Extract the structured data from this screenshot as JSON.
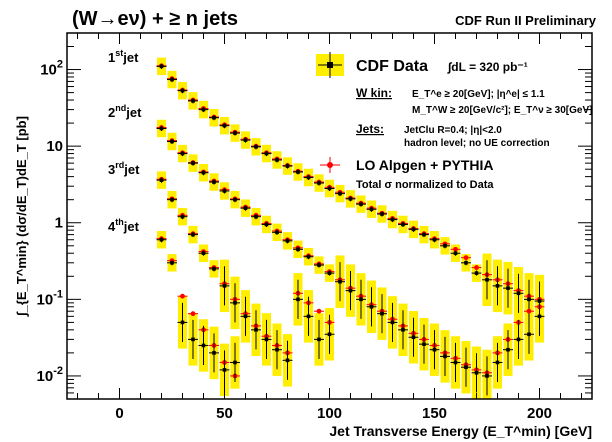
{
  "header": {
    "title": "(W→eν) + ≥ n jets",
    "subtitle": "CDF Run II Preliminary"
  },
  "chart_data": {
    "type": "scatter",
    "xlabel": "Jet Transverse Energy (E_T^min) [GeV]",
    "ylabel": "∫_{E_T^min} (dσ/dE_T)dE_T [pb]",
    "xlim": [
      -25,
      225
    ],
    "ylim": [
      0.005,
      300
    ],
    "yscale": "log",
    "grid": false,
    "x_ticks": [
      0,
      50,
      100,
      150,
      200
    ],
    "y_ticks": [
      0.01,
      0.1,
      1,
      10,
      100
    ],
    "y_tick_labels": [
      "10^-2",
      "10^-1",
      "1",
      "10",
      "10^2"
    ],
    "series": [
      {
        "name": "1st jet",
        "x": [
          20,
          25,
          30,
          35,
          40,
          45,
          50,
          55,
          60,
          65,
          70,
          75,
          80,
          85,
          90,
          95,
          100,
          105,
          110,
          115,
          120,
          125,
          130,
          135,
          140,
          145,
          150,
          155,
          160,
          165,
          170,
          175,
          180,
          185,
          190,
          195,
          200
        ],
        "data": [
          110,
          74,
          53,
          39,
          30,
          23.5,
          18.5,
          14.8,
          12,
          9.8,
          8,
          6.6,
          5.5,
          4.6,
          3.9,
          3.3,
          2.8,
          2.4,
          2.05,
          1.75,
          1.5,
          1.3,
          1.1,
          0.95,
          0.82,
          0.7,
          0.6,
          0.5,
          0.4,
          0.3,
          0.22,
          0.18,
          0.15,
          0.14,
          0.12,
          0.1,
          0.095
        ],
        "mc": [
          112,
          76,
          54,
          40,
          31,
          24,
          19,
          15.2,
          12.3,
          10,
          8.2,
          6.8,
          5.6,
          4.7,
          4,
          3.4,
          2.9,
          2.5,
          2.1,
          1.8,
          1.55,
          1.33,
          1.14,
          0.98,
          0.84,
          0.72,
          0.62,
          0.53,
          0.45,
          0.35,
          0.26,
          0.21,
          0.18,
          0.16,
          0.13,
          0.11,
          0.1
        ]
      },
      {
        "name": "2nd jet",
        "x": [
          20,
          25,
          30,
          35,
          40,
          45,
          50,
          55,
          60,
          65,
          70,
          75,
          80,
          85,
          90,
          95,
          100,
          105,
          110,
          115,
          120,
          125,
          130,
          135,
          140,
          145,
          150,
          155,
          160,
          165,
          170,
          175,
          180,
          185,
          190,
          195,
          200
        ],
        "data": [
          17,
          11.5,
          8,
          6,
          4.5,
          3.4,
          2.6,
          2,
          1.55,
          1.2,
          0.95,
          0.75,
          0.58,
          0.45,
          0.36,
          0.28,
          0.22,
          0.17,
          0.13,
          0.1,
          0.08,
          0.065,
          0.05,
          0.04,
          0.032,
          0.026,
          0.022,
          0.018,
          0.015,
          0.013,
          0.011,
          0.01,
          0.015,
          0.022,
          0.03,
          0.035,
          0.06
        ],
        "mc": [
          17.5,
          11.8,
          8.2,
          6.1,
          4.6,
          3.5,
          2.7,
          2.05,
          1.6,
          1.25,
          0.98,
          0.78,
          0.6,
          0.47,
          0.37,
          0.29,
          0.23,
          0.18,
          0.14,
          0.11,
          0.085,
          0.07,
          0.055,
          0.045,
          0.036,
          0.03,
          0.025,
          0.02,
          0.017,
          0.014,
          0.012,
          0.011,
          0.02,
          0.03,
          0.05,
          0.07,
          0.08
        ]
      },
      {
        "name": "3rd jet",
        "x": [
          20,
          25,
          30,
          35,
          40,
          45,
          50,
          55,
          60,
          65,
          70,
          75,
          80,
          85,
          90,
          95,
          100
        ],
        "data": [
          3.6,
          2,
          1.2,
          0.7,
          0.4,
          0.25,
          0.15,
          0.09,
          0.06,
          0.04,
          0.03,
          0.022,
          0.016,
          0.1,
          0.06,
          0.03,
          0.035
        ],
        "mc": [
          3.7,
          2.05,
          1.25,
          0.72,
          0.42,
          0.26,
          0.16,
          0.1,
          0.065,
          0.045,
          0.033,
          0.025,
          0.02,
          0.12,
          0.09,
          0.07,
          0.05
        ]
      },
      {
        "name": "4th jet",
        "x": [
          20,
          25,
          30,
          35,
          40,
          45,
          50,
          55
        ],
        "data": [
          0.6,
          0.3,
          0.05,
          0.03,
          0.025,
          0.02,
          0.012,
          0.015
        ],
        "mc": [
          0.62,
          0.32,
          0.11,
          0.065,
          0.04,
          0.025,
          0.015,
          0.01
        ]
      }
    ],
    "jet_labels": [
      {
        "label": "1",
        "sup": "st",
        "suffix": "jet"
      },
      {
        "label": "2",
        "sup": "nd",
        "suffix": "jet"
      },
      {
        "label": "3",
        "sup": "rd",
        "suffix": "jet"
      },
      {
        "label": "4",
        "sup": "th",
        "suffix": "jet"
      }
    ],
    "legend": {
      "data_label": "CDF Data",
      "lumi": "∫dL = 320 pb⁻¹",
      "wkin_title": "W kin:",
      "wkin_line1": "E_T^e ≥ 20[GeV]; |η^e| ≤ 1.1",
      "wkin_line2": "M_T^W ≥ 20[GeV/c²]; E_T^ν ≥ 30[GeV]",
      "jets_title": "Jets:",
      "jets_line1": "JetClu R=0.4; |η|<2.0",
      "jets_line2": "hadron level; no UE correction",
      "mc_label": "LO Alpgen + PYTHIA",
      "mc_note": "Total σ normalized to Data"
    },
    "colors": {
      "data": "#000000",
      "mc": "#ff0000",
      "band": "#ffee00"
    }
  }
}
